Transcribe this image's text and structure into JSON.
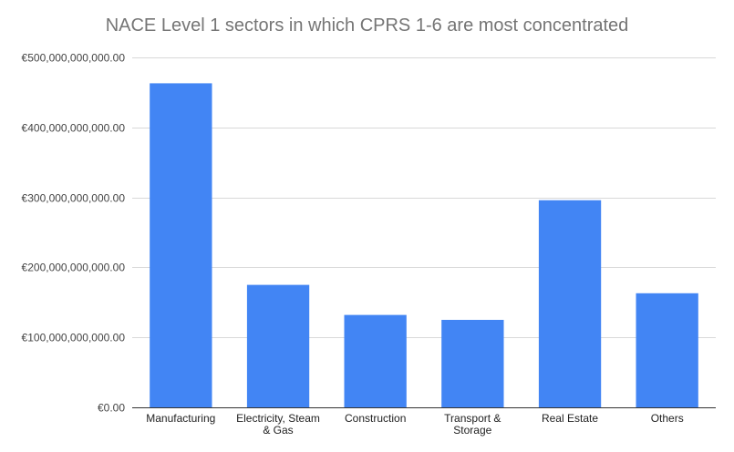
{
  "chart_data": {
    "type": "bar",
    "title": "NACE Level 1 sectors in which CPRS 1-6 are most concentrated",
    "xlabel": "",
    "ylabel": "",
    "categories": [
      [
        "Manufacturing"
      ],
      [
        "Electricity, Steam",
        "& Gas"
      ],
      [
        "Construction"
      ],
      [
        "Transport &",
        "Storage"
      ],
      [
        "Real Estate"
      ],
      [
        "Others"
      ]
    ],
    "values": [
      463000000000,
      175000000000,
      132000000000,
      125000000000,
      296000000000,
      163000000000
    ],
    "ylim": [
      0,
      500000000000
    ],
    "y_ticks": [
      {
        "value": 0,
        "label": "€0.00"
      },
      {
        "value": 100000000000,
        "label": "€100,000,000,000.00"
      },
      {
        "value": 200000000000,
        "label": "€200,000,000,000.00"
      },
      {
        "value": 300000000000,
        "label": "€300,000,000,000.00"
      },
      {
        "value": 400000000000,
        "label": "€400,000,000,000.00"
      },
      {
        "value": 500000000000,
        "label": "€500,000,000,000.00"
      }
    ],
    "grid": true,
    "legend": "none",
    "colors": {
      "bar": "#4285f4",
      "grid": "#d9d9d9",
      "axis": "#333333"
    }
  }
}
